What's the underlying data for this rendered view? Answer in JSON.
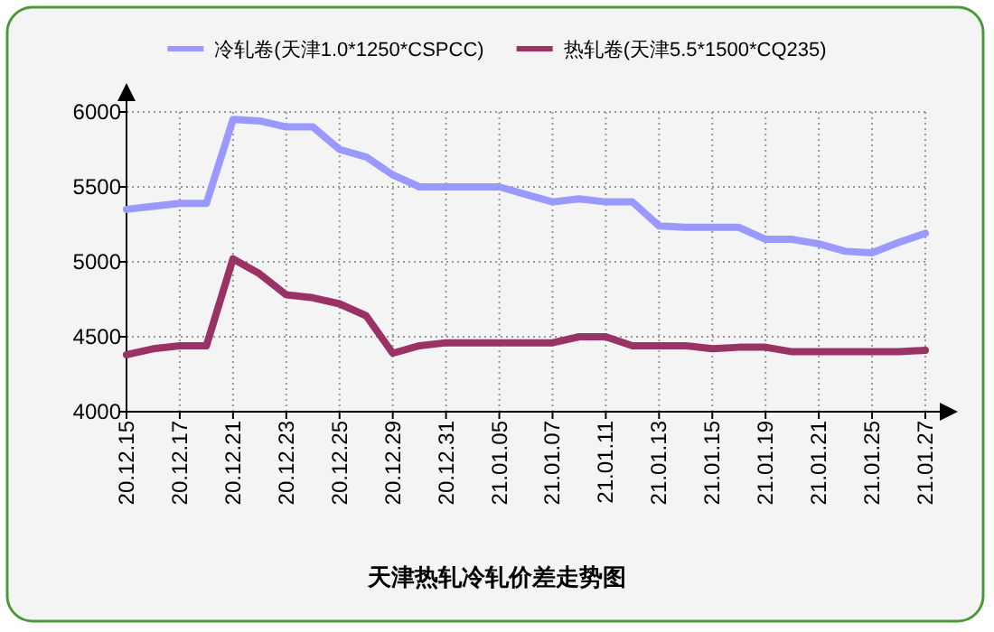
{
  "chart_data": {
    "type": "line",
    "title": "天津热轧冷轧价差走势图",
    "categories": [
      "20.12.15",
      null,
      "20.12.17",
      null,
      "20.12.21",
      null,
      "20.12.23",
      null,
      "20.12.25",
      null,
      "20.12.29",
      null,
      "20.12.31",
      null,
      "21.01.05",
      null,
      "21.01.07",
      null,
      "21.01.11",
      null,
      "21.01.13",
      null,
      "21.01.15",
      null,
      "21.01.19",
      null,
      "21.01.21",
      null,
      "21.01.25",
      null,
      "21.01.27"
    ],
    "series": [
      {
        "name": "冷轧卷(天津1.0*1250*CSPCC)",
        "color": "#9999ff",
        "values": [
          5350,
          5370,
          5390,
          5390,
          5950,
          5940,
          5900,
          5900,
          5750,
          5700,
          5580,
          5500,
          5500,
          5500,
          5500,
          5450,
          5400,
          5420,
          5400,
          5400,
          5240,
          5230,
          5230,
          5230,
          5150,
          5150,
          5120,
          5070,
          5060,
          5130,
          5190
        ]
      },
      {
        "name": "热轧卷(天津5.5*1500*CQ235)",
        "color": "#993366",
        "values": [
          4380,
          4420,
          4440,
          4440,
          5020,
          4920,
          4780,
          4760,
          4720,
          4640,
          4390,
          4440,
          4460,
          4460,
          4460,
          4460,
          4460,
          4500,
          4500,
          4440,
          4440,
          4440,
          4420,
          4430,
          4430,
          4400,
          4400,
          4400,
          4400,
          4400,
          4410
        ]
      }
    ],
    "ylim": [
      4000,
      6000
    ],
    "yticks": [
      4000,
      4500,
      5000,
      5500,
      6000
    ],
    "grid": true,
    "legend": "top"
  }
}
